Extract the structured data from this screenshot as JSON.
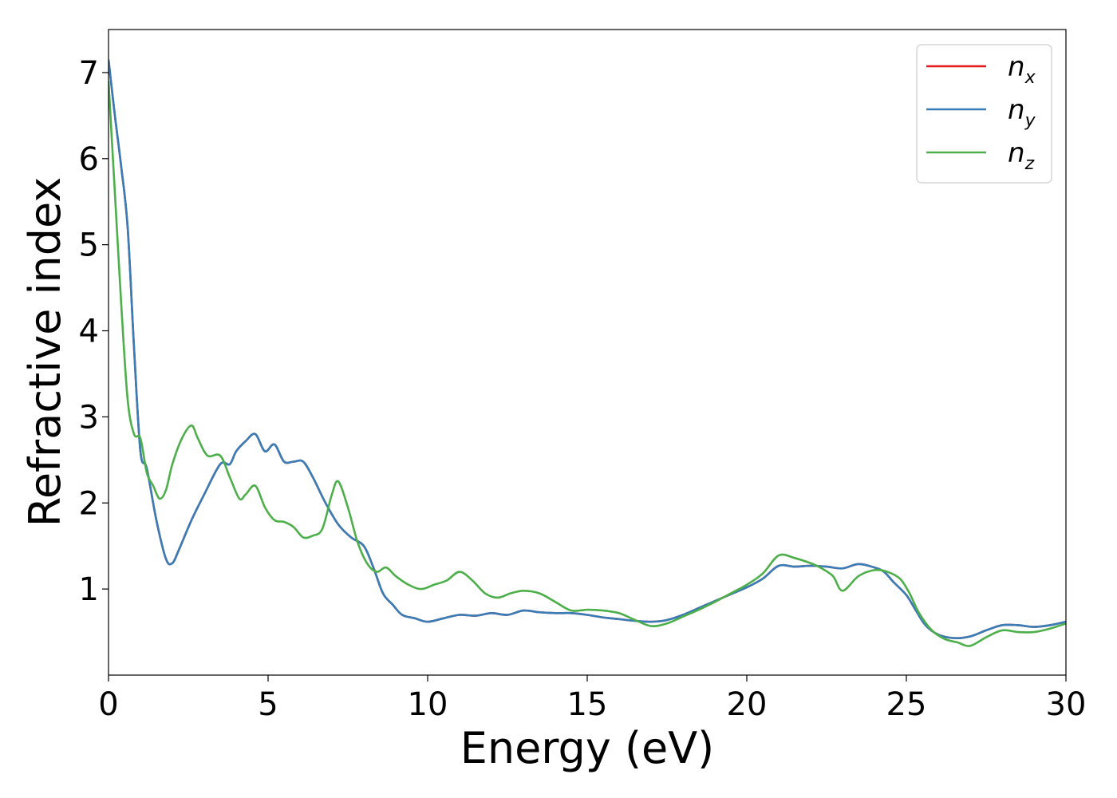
{
  "chart_data": {
    "type": "line",
    "xlabel": "Energy (eV)",
    "ylabel": "Refractive index",
    "xlim": [
      0,
      30
    ],
    "ylim": [
      0,
      7.5
    ],
    "x_ticks": [
      0,
      5,
      10,
      15,
      20,
      25,
      30
    ],
    "x_tick_labels": [
      "0",
      "5",
      "10",
      "15",
      "20",
      "25",
      "30"
    ],
    "y_ticks": [
      1,
      2,
      3,
      4,
      5,
      6,
      7
    ],
    "y_tick_labels": [
      "1",
      "2",
      "3",
      "4",
      "5",
      "6",
      "7"
    ],
    "grid": false,
    "legend_position": "top-right",
    "series": [
      {
        "name": "n_x",
        "legend_base": "n",
        "legend_sub": "x",
        "color": "#e41a1c",
        "x": [
          0,
          0.2,
          0.4,
          0.6,
          0.8,
          1.0,
          1.2,
          1.5,
          1.8,
          2.0,
          2.2,
          2.6,
          3.0,
          3.5,
          3.8,
          4.0,
          4.3,
          4.6,
          4.9,
          5.2,
          5.5,
          5.8,
          6.1,
          6.4,
          6.8,
          7.2,
          7.6,
          8.0,
          8.3,
          8.6,
          8.9,
          9.2,
          9.6,
          10.0,
          10.5,
          11.0,
          11.5,
          12.0,
          12.5,
          13.0,
          13.5,
          14.0,
          14.5,
          15.0,
          15.5,
          16.0,
          16.5,
          17.0,
          17.5,
          18.0,
          18.5,
          19.0,
          19.5,
          20.0,
          20.5,
          21.0,
          21.5,
          22.0,
          22.5,
          23.0,
          23.5,
          24.0,
          24.3,
          24.6,
          25.0,
          25.3,
          25.6,
          26.0,
          26.5,
          27.0,
          27.5,
          28.0,
          28.5,
          29.0,
          29.5,
          30.0
        ],
        "y": [
          7.15,
          6.5,
          5.9,
          5.2,
          3.8,
          2.6,
          2.4,
          1.8,
          1.35,
          1.3,
          1.45,
          1.8,
          2.1,
          2.45,
          2.45,
          2.6,
          2.72,
          2.8,
          2.6,
          2.68,
          2.48,
          2.48,
          2.48,
          2.3,
          2.0,
          1.75,
          1.6,
          1.5,
          1.25,
          0.95,
          0.82,
          0.7,
          0.66,
          0.62,
          0.66,
          0.7,
          0.69,
          0.72,
          0.7,
          0.75,
          0.73,
          0.72,
          0.72,
          0.7,
          0.67,
          0.65,
          0.63,
          0.62,
          0.64,
          0.7,
          0.78,
          0.86,
          0.94,
          1.02,
          1.12,
          1.27,
          1.26,
          1.27,
          1.26,
          1.24,
          1.29,
          1.25,
          1.2,
          1.08,
          0.93,
          0.75,
          0.58,
          0.47,
          0.43,
          0.45,
          0.52,
          0.58,
          0.58,
          0.56,
          0.58,
          0.62
        ]
      },
      {
        "name": "n_y",
        "legend_base": "n",
        "legend_sub": "y",
        "color": "#377eb8",
        "x": [
          0,
          0.2,
          0.4,
          0.6,
          0.8,
          1.0,
          1.2,
          1.5,
          1.8,
          2.0,
          2.2,
          2.6,
          3.0,
          3.5,
          3.8,
          4.0,
          4.3,
          4.6,
          4.9,
          5.2,
          5.5,
          5.8,
          6.1,
          6.4,
          6.8,
          7.2,
          7.6,
          8.0,
          8.3,
          8.6,
          8.9,
          9.2,
          9.6,
          10.0,
          10.5,
          11.0,
          11.5,
          12.0,
          12.5,
          13.0,
          13.5,
          14.0,
          14.5,
          15.0,
          15.5,
          16.0,
          16.5,
          17.0,
          17.5,
          18.0,
          18.5,
          19.0,
          19.5,
          20.0,
          20.5,
          21.0,
          21.5,
          22.0,
          22.5,
          23.0,
          23.5,
          24.0,
          24.3,
          24.6,
          25.0,
          25.3,
          25.6,
          26.0,
          26.5,
          27.0,
          27.5,
          28.0,
          28.5,
          29.0,
          29.5,
          30.0
        ],
        "y": [
          7.15,
          6.5,
          5.9,
          5.2,
          3.8,
          2.6,
          2.4,
          1.8,
          1.35,
          1.3,
          1.45,
          1.8,
          2.1,
          2.45,
          2.45,
          2.6,
          2.72,
          2.8,
          2.6,
          2.68,
          2.48,
          2.48,
          2.48,
          2.3,
          2.0,
          1.75,
          1.6,
          1.5,
          1.25,
          0.95,
          0.82,
          0.7,
          0.66,
          0.62,
          0.66,
          0.7,
          0.69,
          0.72,
          0.7,
          0.75,
          0.73,
          0.72,
          0.72,
          0.7,
          0.67,
          0.65,
          0.63,
          0.62,
          0.64,
          0.7,
          0.78,
          0.86,
          0.94,
          1.02,
          1.12,
          1.27,
          1.26,
          1.27,
          1.26,
          1.24,
          1.29,
          1.25,
          1.2,
          1.08,
          0.93,
          0.75,
          0.58,
          0.47,
          0.43,
          0.45,
          0.52,
          0.58,
          0.58,
          0.56,
          0.58,
          0.62
        ]
      },
      {
        "name": "n_z",
        "legend_base": "n",
        "legend_sub": "z",
        "color": "#4daf4a",
        "x": [
          0,
          0.2,
          0.4,
          0.6,
          0.8,
          1.0,
          1.2,
          1.4,
          1.6,
          1.8,
          2.0,
          2.3,
          2.6,
          2.8,
          3.1,
          3.5,
          3.8,
          4.1,
          4.3,
          4.6,
          4.9,
          5.2,
          5.5,
          5.8,
          6.1,
          6.4,
          6.7,
          7.0,
          7.2,
          7.5,
          7.8,
          8.1,
          8.4,
          8.7,
          9.0,
          9.4,
          9.8,
          10.2,
          10.6,
          11.0,
          11.4,
          11.8,
          12.2,
          12.6,
          13.0,
          13.5,
          14.0,
          14.5,
          15.0,
          15.5,
          16.0,
          16.5,
          17.0,
          17.5,
          18.0,
          18.5,
          19.0,
          19.5,
          20.0,
          20.5,
          21.0,
          21.5,
          22.0,
          22.3,
          22.7,
          23.0,
          23.5,
          24.0,
          24.4,
          24.8,
          25.1,
          25.4,
          25.8,
          26.2,
          26.6,
          27.0,
          27.5,
          28.0,
          28.5,
          29.0,
          29.5,
          30.0
        ],
        "y": [
          6.9,
          5.6,
          4.3,
          3.2,
          2.8,
          2.75,
          2.35,
          2.2,
          2.05,
          2.15,
          2.45,
          2.75,
          2.9,
          2.75,
          2.55,
          2.55,
          2.3,
          2.05,
          2.1,
          2.2,
          1.95,
          1.8,
          1.78,
          1.72,
          1.6,
          1.62,
          1.7,
          2.1,
          2.25,
          1.95,
          1.55,
          1.3,
          1.2,
          1.25,
          1.15,
          1.05,
          1.0,
          1.05,
          1.1,
          1.2,
          1.1,
          0.95,
          0.9,
          0.95,
          0.98,
          0.95,
          0.85,
          0.75,
          0.76,
          0.75,
          0.72,
          0.64,
          0.57,
          0.6,
          0.68,
          0.76,
          0.85,
          0.95,
          1.05,
          1.18,
          1.39,
          1.36,
          1.3,
          1.25,
          1.15,
          0.98,
          1.15,
          1.22,
          1.2,
          1.12,
          0.95,
          0.72,
          0.52,
          0.42,
          0.38,
          0.34,
          0.44,
          0.52,
          0.5,
          0.5,
          0.54,
          0.6
        ]
      }
    ]
  }
}
